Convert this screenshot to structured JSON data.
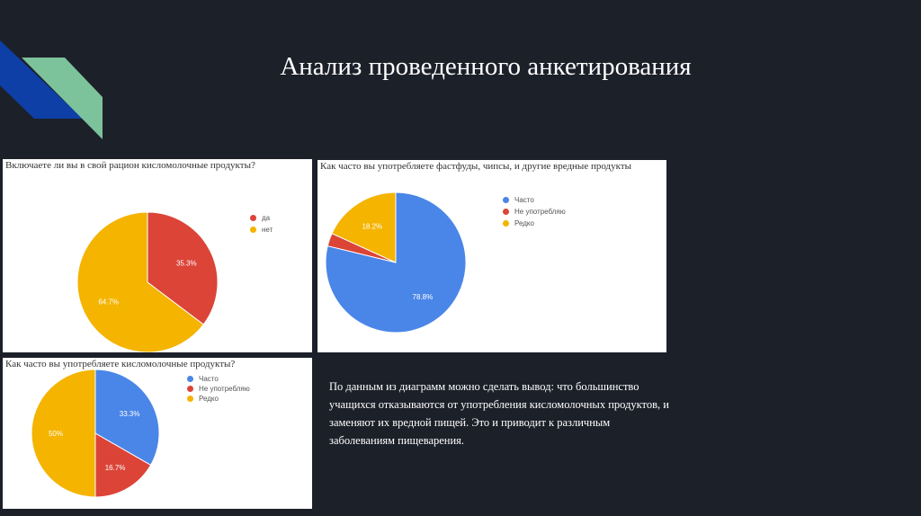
{
  "slide": {
    "title": "Анализ проведенного анкетирования",
    "conclusion": "По данным из диаграмм можно сделать вывод: что большинство учащихся отказываются от употребления кисломолочных продуктов, и заменяют их вредной пищей. Это и приводит к различным заболеваниям пищеварения."
  },
  "colors": {
    "background": "#1c2029",
    "deco_blue": "#0d3fa6",
    "deco_green": "#7cc29b",
    "pie_blue": "#4a86e8",
    "pie_red": "#db4437",
    "pie_yellow": "#f4b400"
  },
  "chart_data": [
    {
      "type": "pie",
      "title": "Включаете ли вы в свой рацион кисломолочные продукты?",
      "categories": [
        "да",
        "нет"
      ],
      "values": [
        35.3,
        64.7
      ],
      "labels": [
        "35.3%",
        "64.7%"
      ],
      "colors": [
        "#db4437",
        "#f4b400"
      ],
      "legend": "right"
    },
    {
      "type": "pie",
      "title": "Как часто вы употребляете фастфуды, чипсы, и другие вредные продукты",
      "categories": [
        "Часто",
        "Не употребляю",
        "Редко"
      ],
      "values": [
        78.8,
        3.0,
        18.2
      ],
      "labels": [
        "78.8%",
        "",
        "18.2%"
      ],
      "colors": [
        "#4a86e8",
        "#db4437",
        "#f4b400"
      ],
      "legend": "right"
    },
    {
      "type": "pie",
      "title": "Как часто вы употребляете кисломолочные продукты?",
      "categories": [
        "Часто",
        "Не употребляю",
        "Редко"
      ],
      "values": [
        33.3,
        16.7,
        50.0
      ],
      "labels": [
        "33.3%",
        "16.7%",
        "50%"
      ],
      "colors": [
        "#4a86e8",
        "#db4437",
        "#f4b400"
      ],
      "legend": "right"
    }
  ]
}
